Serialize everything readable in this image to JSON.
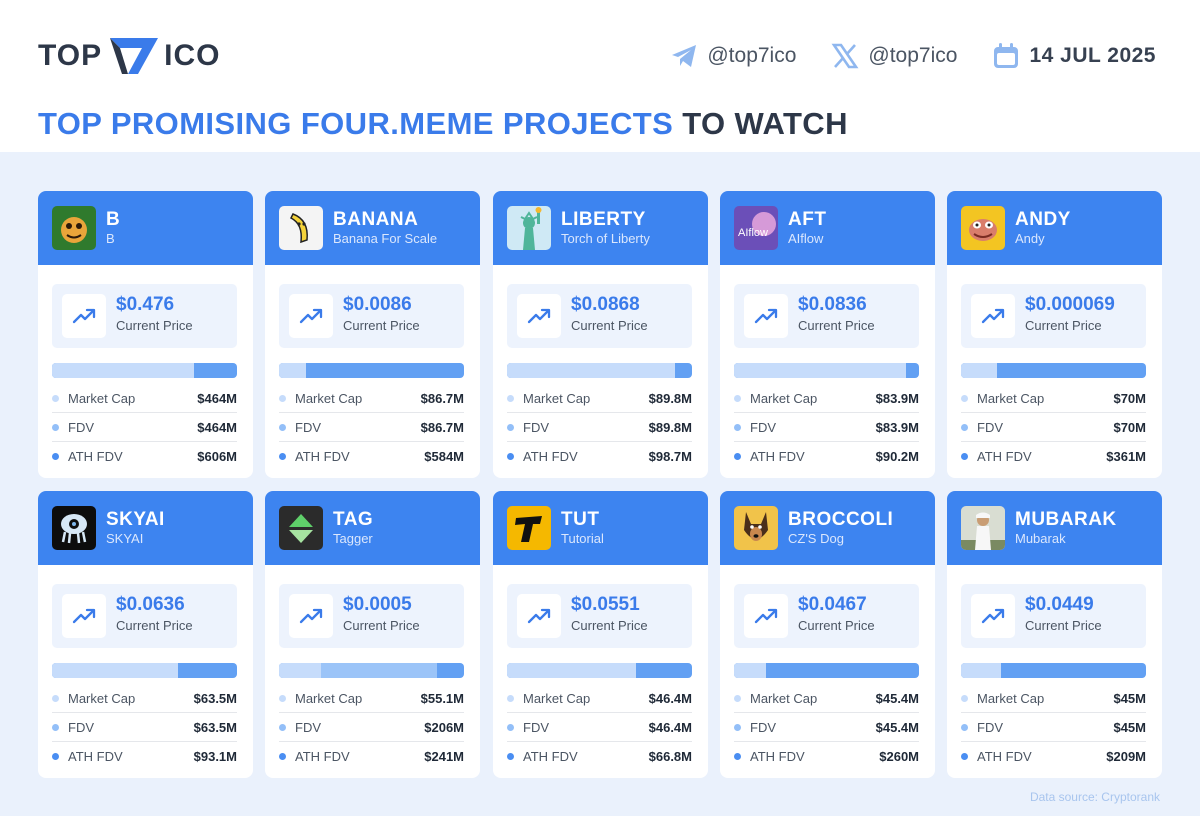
{
  "brand": {
    "left": "TOP",
    "right": "ICO"
  },
  "socials": {
    "telegram": "@top7ico",
    "x": "@top7ico",
    "date": "14 JUL 2025"
  },
  "headline": {
    "blue": "TOP PROMISING FOUR.MEME PROJECTS",
    "dark": "TO WATCH"
  },
  "labels": {
    "current_price": "Current Price",
    "market_cap": "Market Cap",
    "fdv": "FDV",
    "ath_fdv": "ATH FDV"
  },
  "projects": [
    {
      "ticker": "B",
      "name": "B",
      "price": "$0.476",
      "market_cap": "$464M",
      "fdv": "$464M",
      "ath_fdv": "$606M",
      "mc_value": 464,
      "fdv_value": 464,
      "ath_value": 606,
      "avatar_icon": "frog-avatar-icon",
      "avatar_color": "#2f7a2d"
    },
    {
      "ticker": "BANANA",
      "name": "Banana For Scale",
      "price": "$0.0086",
      "market_cap": "$86.7M",
      "fdv": "$86.7M",
      "ath_fdv": "$584M",
      "mc_value": 86.7,
      "fdv_value": 86.7,
      "ath_value": 584,
      "avatar_icon": "banana-avatar-icon",
      "avatar_color": "#f4f4f4"
    },
    {
      "ticker": "LIBERTY",
      "name": "Torch of Liberty",
      "price": "$0.0868",
      "market_cap": "$89.8M",
      "fdv": "$89.8M",
      "ath_fdv": "$98.7M",
      "mc_value": 89.8,
      "fdv_value": 89.8,
      "ath_value": 98.7,
      "avatar_icon": "statue-avatar-icon",
      "avatar_color": "#cfe9f5"
    },
    {
      "ticker": "AFT",
      "name": "AIflow",
      "price": "$0.0836",
      "market_cap": "$83.9M",
      "fdv": "$83.9M",
      "ath_fdv": "$90.2M",
      "mc_value": 83.9,
      "fdv_value": 83.9,
      "ath_value": 90.2,
      "avatar_icon": "aiflow-avatar-icon",
      "avatar_color": "#6b4fb8"
    },
    {
      "ticker": "ANDY",
      "name": "Andy",
      "price": "$0.000069",
      "market_cap": "$70M",
      "fdv": "$70M",
      "ath_fdv": "$361M",
      "mc_value": 70,
      "fdv_value": 70,
      "ath_value": 361,
      "avatar_icon": "andy-avatar-icon",
      "avatar_color": "#f3c522"
    },
    {
      "ticker": "SKYAI",
      "name": "SKYAI",
      "price": "$0.0636",
      "market_cap": "$63.5M",
      "fdv": "$63.5M",
      "ath_fdv": "$93.1M",
      "mc_value": 63.5,
      "fdv_value": 63.5,
      "ath_value": 93.1,
      "avatar_icon": "skyai-avatar-icon",
      "avatar_color": "#0d0d0d"
    },
    {
      "ticker": "TAG",
      "name": "Tagger",
      "price": "$0.0005",
      "market_cap": "$55.1M",
      "fdv": "$206M",
      "ath_fdv": "$241M",
      "mc_value": 55.1,
      "fdv_value": 206,
      "ath_value": 241,
      "avatar_icon": "tagger-avatar-icon",
      "avatar_color": "#2b2b2b"
    },
    {
      "ticker": "TUT",
      "name": "Tutorial",
      "price": "$0.0551",
      "market_cap": "$46.4M",
      "fdv": "$46.4M",
      "ath_fdv": "$66.8M",
      "mc_value": 46.4,
      "fdv_value": 46.4,
      "ath_value": 66.8,
      "avatar_icon": "tutorial-avatar-icon",
      "avatar_color": "#f5b800"
    },
    {
      "ticker": "BROCCOLI",
      "name": "CZ'S Dog",
      "price": "$0.0467",
      "market_cap": "$45.4M",
      "fdv": "$45.4M",
      "ath_fdv": "$260M",
      "mc_value": 45.4,
      "fdv_value": 45.4,
      "ath_value": 260,
      "avatar_icon": "dog-avatar-icon",
      "avatar_color": "#f1c34a"
    },
    {
      "ticker": "MUBARAK",
      "name": "Mubarak",
      "price": "$0.0449",
      "market_cap": "$45M",
      "fdv": "$45M",
      "ath_fdv": "$209M",
      "mc_value": 45,
      "fdv_value": 45,
      "ath_value": 209,
      "avatar_icon": "mubarak-avatar-icon",
      "avatar_color": "#d9ddd2"
    }
  ],
  "footer": {
    "source": "Data source: Cryptorank"
  },
  "colors": {
    "accent": "#3a7bea",
    "card_header": "#3d84f0",
    "background": "#eaf1fc",
    "bar_mc": "#c6dcfb",
    "bar_fdv": "#9bc4f8",
    "bar_ath": "#62a0f3"
  }
}
